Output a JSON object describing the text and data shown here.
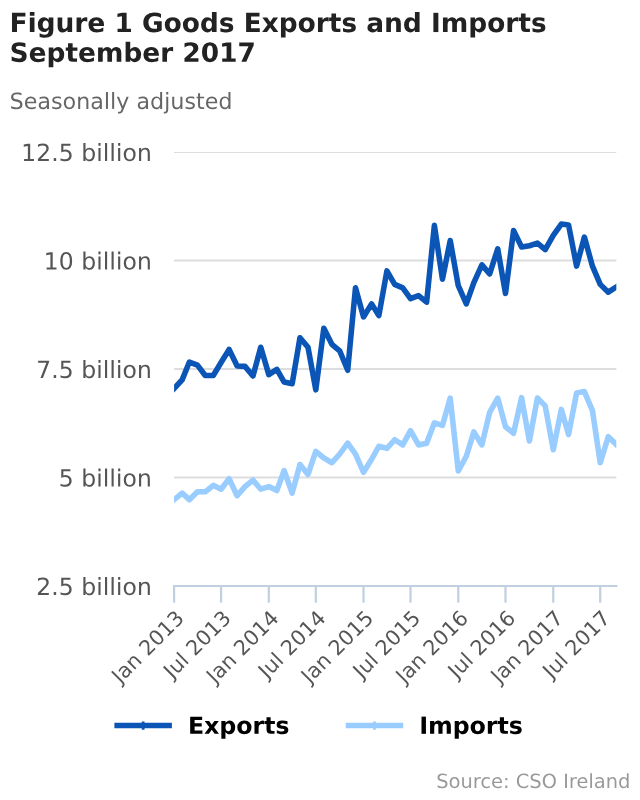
{
  "chart_data": {
    "type": "line",
    "title": "Figure 1 Goods Exports and Imports\nSeptember 2017",
    "subtitle": "Seasonally adjusted",
    "x": [
      "2013-01",
      "2013-02",
      "2013-03",
      "2013-04",
      "2013-05",
      "2013-06",
      "2013-07",
      "2013-08",
      "2013-09",
      "2013-10",
      "2013-11",
      "2013-12",
      "2014-01",
      "2014-02",
      "2014-03",
      "2014-04",
      "2014-05",
      "2014-06",
      "2014-07",
      "2014-08",
      "2014-09",
      "2014-10",
      "2014-11",
      "2014-12",
      "2015-01",
      "2015-02",
      "2015-03",
      "2015-04",
      "2015-05",
      "2015-06",
      "2015-07",
      "2015-08",
      "2015-09",
      "2015-10",
      "2015-11",
      "2015-12",
      "2016-01",
      "2016-02",
      "2016-03",
      "2016-04",
      "2016-05",
      "2016-06",
      "2016-07",
      "2016-08",
      "2016-09",
      "2016-10",
      "2016-11",
      "2016-12",
      "2017-01",
      "2017-02",
      "2017-03",
      "2017-04",
      "2017-05",
      "2017-06",
      "2017-07",
      "2017-08",
      "2017-09"
    ],
    "series": [
      {
        "name": "Exports",
        "color": "#0a55b5",
        "values": [
          7.05,
          7.25,
          7.66,
          7.59,
          7.35,
          7.35,
          7.65,
          7.95,
          7.57,
          7.56,
          7.34,
          8.0,
          7.37,
          7.49,
          7.2,
          7.16,
          8.22,
          8.0,
          7.02,
          8.44,
          8.07,
          7.92,
          7.47,
          9.37,
          8.7,
          9.0,
          8.73,
          9.76,
          9.45,
          9.37,
          9.12,
          9.19,
          9.04,
          10.81,
          9.57,
          10.46,
          9.42,
          9.0,
          9.49,
          9.9,
          9.69,
          10.27,
          9.24,
          10.69,
          10.31,
          10.34,
          10.4,
          10.25,
          10.58,
          10.84,
          10.82,
          9.87,
          10.54,
          9.87,
          9.45,
          9.27,
          9.39
        ]
      },
      {
        "name": "Imports",
        "color": "#99ccff",
        "values": [
          4.49,
          4.64,
          4.49,
          4.67,
          4.67,
          4.82,
          4.73,
          4.97,
          4.58,
          4.79,
          4.94,
          4.73,
          4.79,
          4.7,
          5.16,
          4.64,
          5.3,
          5.07,
          5.6,
          5.45,
          5.34,
          5.54,
          5.79,
          5.54,
          5.12,
          5.42,
          5.72,
          5.67,
          5.87,
          5.75,
          6.08,
          5.75,
          5.79,
          6.26,
          6.2,
          6.83,
          5.15,
          5.49,
          6.05,
          5.75,
          6.5,
          6.83,
          6.17,
          6.02,
          6.84,
          5.84,
          6.83,
          6.65,
          5.64,
          6.57,
          5.99,
          6.95,
          6.98,
          6.54,
          5.34,
          5.94,
          5.76
        ]
      }
    ],
    "xlim": [
      "2013-01",
      "2017-09"
    ],
    "xticks": [
      {
        "value": "2013-01",
        "label": "Jan 2013"
      },
      {
        "value": "2013-07",
        "label": "Jul 2013"
      },
      {
        "value": "2014-01",
        "label": "Jan 2014"
      },
      {
        "value": "2014-07",
        "label": "Jul 2014"
      },
      {
        "value": "2015-01",
        "label": "Jan 2015"
      },
      {
        "value": "2015-07",
        "label": "Jul 2015"
      },
      {
        "value": "2016-01",
        "label": "Jan 2016"
      },
      {
        "value": "2016-07",
        "label": "Jul 2016"
      },
      {
        "value": "2017-01",
        "label": "Jan 2017"
      },
      {
        "value": "2017-07",
        "label": "Jul 2017"
      }
    ],
    "ylim": [
      2.5,
      12.5
    ],
    "yticks": [
      {
        "value": 2.5,
        "label": "2.5 billion"
      },
      {
        "value": 5,
        "label": "5 billion"
      },
      {
        "value": 7.5,
        "label": "7.5 billion"
      },
      {
        "value": 10,
        "label": "10 billion"
      },
      {
        "value": 12.5,
        "label": "12.5 billion"
      }
    ],
    "grid": "y",
    "legend": "bottom",
    "marker": "none",
    "line_style": "solid",
    "annotations": [
      "Source: CSO Ireland"
    ]
  }
}
